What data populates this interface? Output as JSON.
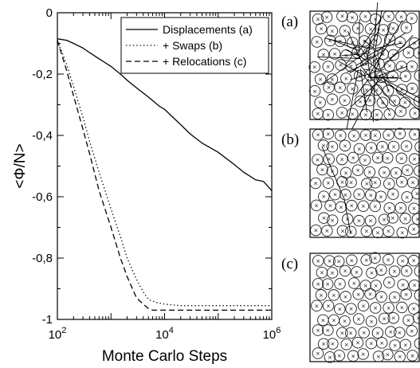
{
  "chart_data": {
    "type": "line",
    "title": "",
    "xlabel": "Monte Carlo Steps",
    "ylabel": "<Φ/N>",
    "xscale": "log",
    "xlim": [
      100,
      1000000
    ],
    "ylim": [
      -1.0,
      0.0
    ],
    "x_ticks": [
      {
        "value": 100,
        "base": "10",
        "exp": "2"
      },
      {
        "value": 10000,
        "base": "10",
        "exp": "4"
      },
      {
        "value": 1000000,
        "base": "10",
        "exp": "6"
      }
    ],
    "y_ticks": [
      {
        "value": 0.0,
        "label": "0"
      },
      {
        "value": -0.2,
        "label": "-0,2"
      },
      {
        "value": -0.4,
        "label": "-0,4"
      },
      {
        "value": -0.6,
        "label": "-0,6"
      },
      {
        "value": -0.8,
        "label": "-0,8"
      },
      {
        "value": -1.0,
        "label": "-1"
      }
    ],
    "grid": false,
    "legend_position": "top-right",
    "series": [
      {
        "name": "Displacements (a)",
        "style": "solid",
        "x": [
          100,
          150,
          200,
          300,
          400,
          600,
          1000,
          1500,
          2000,
          3000,
          5000,
          8000,
          10000,
          20000,
          30000,
          50000,
          100000,
          200000,
          300000,
          500000,
          700000,
          1000000
        ],
        "y": [
          -0.085,
          -0.09,
          -0.1,
          -0.115,
          -0.13,
          -0.15,
          -0.175,
          -0.2,
          -0.22,
          -0.245,
          -0.275,
          -0.305,
          -0.315,
          -0.365,
          -0.395,
          -0.425,
          -0.455,
          -0.495,
          -0.52,
          -0.545,
          -0.55,
          -0.58
        ]
      },
      {
        "name": "+ Swaps (b)",
        "style": "dotted",
        "x": [
          100,
          150,
          200,
          300,
          400,
          600,
          1000,
          1500,
          2000,
          3000,
          4000,
          5000,
          7000,
          10000,
          20000,
          50000,
          100000,
          1000000
        ],
        "y": [
          -0.09,
          -0.17,
          -0.24,
          -0.34,
          -0.42,
          -0.52,
          -0.64,
          -0.73,
          -0.8,
          -0.87,
          -0.91,
          -0.935,
          -0.945,
          -0.95,
          -0.955,
          -0.955,
          -0.955,
          -0.955
        ]
      },
      {
        "name": "+ Relocations (c)",
        "style": "dashed",
        "x": [
          100,
          150,
          200,
          300,
          400,
          600,
          1000,
          1500,
          2000,
          3000,
          4000,
          5000,
          6000,
          8000,
          10000,
          20000,
          100000,
          1000000
        ],
        "y": [
          -0.09,
          -0.19,
          -0.27,
          -0.38,
          -0.46,
          -0.58,
          -0.7,
          -0.8,
          -0.86,
          -0.93,
          -0.95,
          -0.965,
          -0.97,
          -0.97,
          -0.97,
          -0.97,
          -0.97,
          -0.97
        ]
      }
    ]
  },
  "panels": [
    {
      "label": "(a)"
    },
    {
      "label": "(b)"
    },
    {
      "label": "(c)"
    }
  ]
}
